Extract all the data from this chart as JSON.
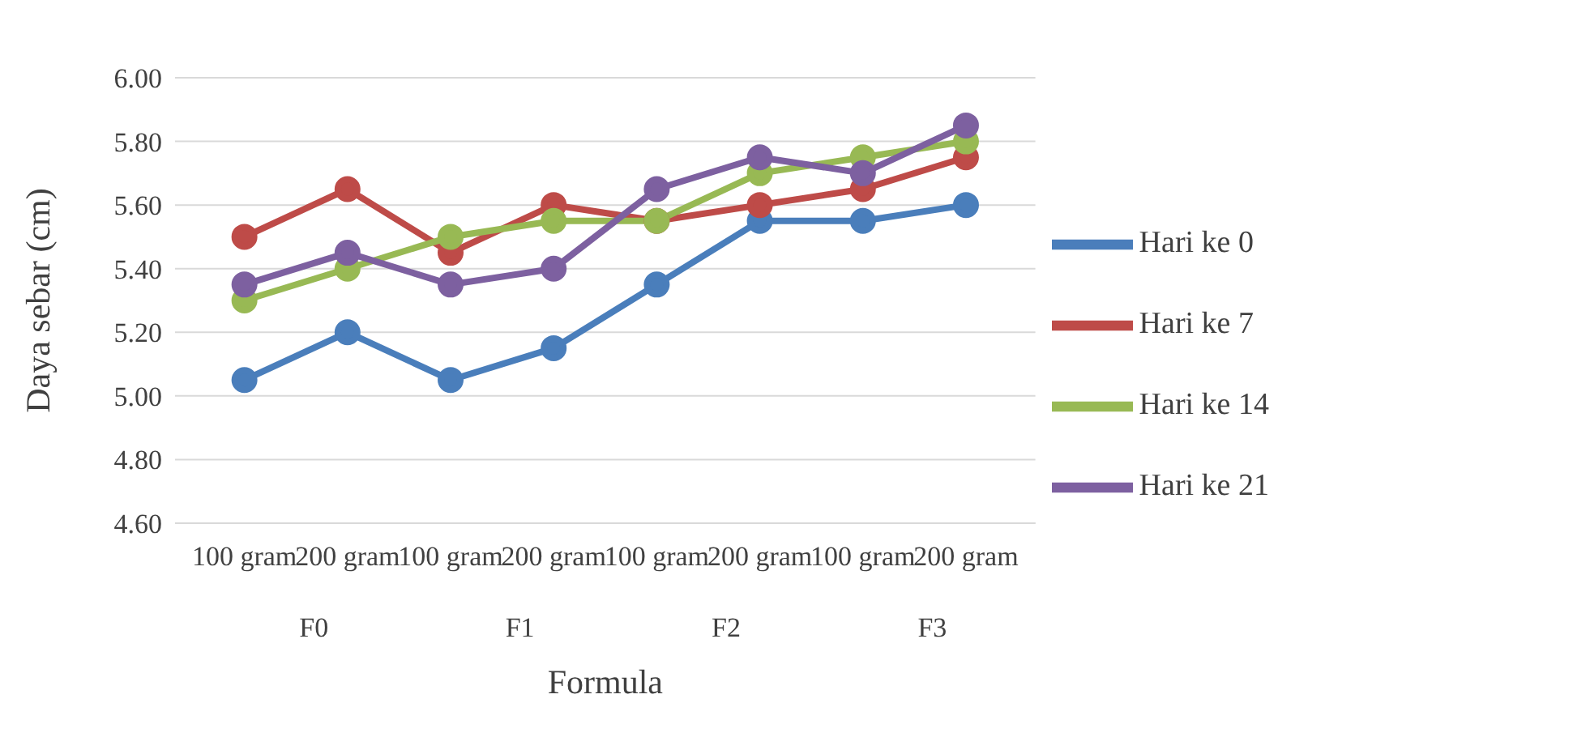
{
  "chart_data": {
    "type": "line",
    "xlabel": "Formula",
    "ylabel": "Daya sebar (cm)",
    "categories": [
      "100 gram",
      "200 gram",
      "100 gram",
      "200 gram",
      "100 gram",
      "200 gram",
      "100 gram",
      "200 gram"
    ],
    "annotations": [
      "F0",
      "F1",
      "F2",
      "F3"
    ],
    "series": [
      {
        "name": "Hari ke 0",
        "color": "#4a7ebb",
        "values": [
          5.05,
          5.2,
          5.05,
          5.15,
          5.35,
          5.55,
          5.55,
          5.6
        ]
      },
      {
        "name": "Hari ke 7",
        "color": "#be4b48",
        "values": [
          5.5,
          5.65,
          5.45,
          5.6,
          5.55,
          5.6,
          5.65,
          5.75
        ]
      },
      {
        "name": "Hari ke 14",
        "color": "#98b954",
        "values": [
          5.3,
          5.4,
          5.5,
          5.55,
          5.55,
          5.7,
          5.75,
          5.8
        ]
      },
      {
        "name": "Hari ke 21",
        "color": "#7d60a0",
        "values": [
          5.35,
          5.45,
          5.35,
          5.4,
          5.65,
          5.75,
          5.7,
          5.85
        ]
      }
    ],
    "ylim": [
      4.6,
      6.0
    ],
    "yticks": [
      {
        "value": 4.6,
        "label": "4.60"
      },
      {
        "value": 4.8,
        "label": "4.80"
      },
      {
        "value": 5.0,
        "label": "5.00"
      },
      {
        "value": 5.2,
        "label": "5.20"
      },
      {
        "value": 5.4,
        "label": "5.40"
      },
      {
        "value": 5.6,
        "label": "5.60"
      },
      {
        "value": 5.8,
        "label": "5.80"
      },
      {
        "value": 6.0,
        "label": "6.00"
      }
    ],
    "grid": "y",
    "legend": "right",
    "marker": "circle",
    "line_style": "solid"
  }
}
